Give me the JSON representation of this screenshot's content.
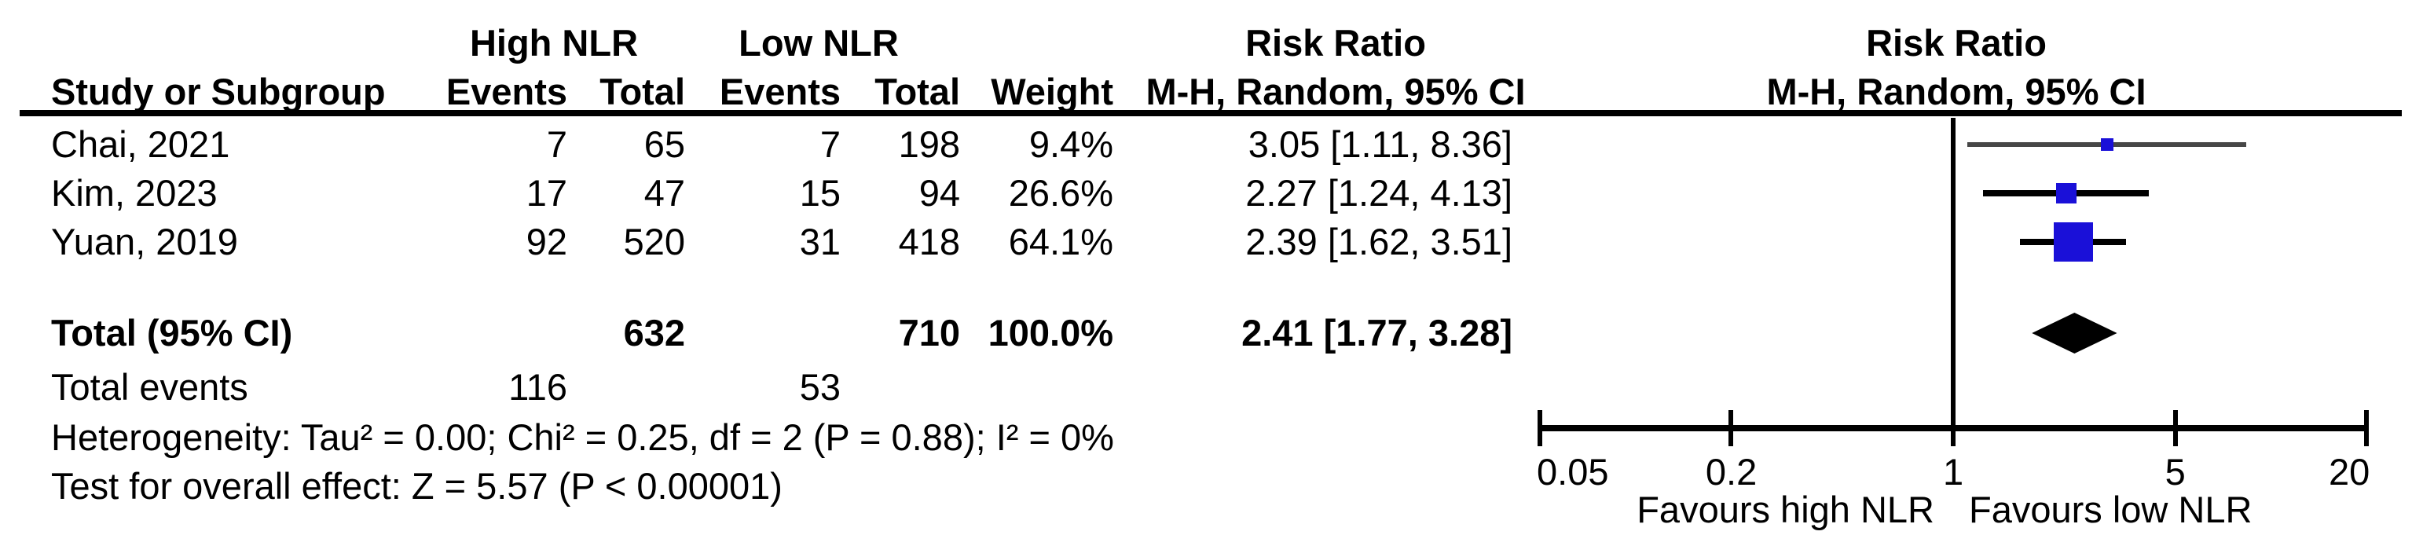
{
  "header": {
    "group_high": "High NLR",
    "group_low": "Low NLR",
    "risk_ratio": "Risk Ratio",
    "method_ci": "M-H, Random, 95% CI",
    "study_col": "Study or Subgroup",
    "events_col": "Events",
    "total_col": "Total",
    "weight_col": "Weight"
  },
  "rows": [
    {
      "study": "Chai, 2021",
      "events_high": "7",
      "total_high": "65",
      "events_low": "7",
      "total_low": "198",
      "weight": "9.4%",
      "rr_ci": "3.05 [1.11, 8.36]"
    },
    {
      "study": "Kim, 2023",
      "events_high": "17",
      "total_high": "47",
      "events_low": "15",
      "total_low": "94",
      "weight": "26.6%",
      "rr_ci": "2.27 [1.24, 4.13]"
    },
    {
      "study": "Yuan, 2019",
      "events_high": "92",
      "total_high": "520",
      "events_low": "31",
      "total_low": "418",
      "weight": "64.1%",
      "rr_ci": "2.39 [1.62, 3.51]"
    }
  ],
  "totals": {
    "label": "Total (95% CI)",
    "total_high": "632",
    "total_low": "710",
    "weight": "100.0%",
    "rr_ci": "2.41 [1.77, 3.28]",
    "events_label": "Total events",
    "events_high": "116",
    "events_low": "53"
  },
  "footer": {
    "heterogeneity": "Heterogeneity: Tau² = 0.00; Chi² = 0.25, df = 2 (P = 0.88); I² = 0%",
    "overall_effect": "Test for overall effect: Z = 5.57 (P < 0.00001)"
  },
  "plot": {
    "favours_left": "Favours high NLR",
    "favours_right": "Favours low NLR",
    "square_color": "#1a10d8",
    "diamond_color": "#000000",
    "axis_color": "#000000"
  },
  "chart_data": {
    "type": "forest",
    "effect_measure": "Risk Ratio",
    "model": "M-H, Random, 95% CI",
    "x_scale": "log",
    "x_ticks": [
      0.05,
      0.2,
      1,
      5,
      20
    ],
    "x_range": [
      0.05,
      20
    ],
    "null_value": 1,
    "studies": [
      {
        "name": "Chai, 2021",
        "rr": 3.05,
        "ci_low": 1.11,
        "ci_high": 8.36,
        "weight_pct": 9.4
      },
      {
        "name": "Kim, 2023",
        "rr": 2.27,
        "ci_low": 1.24,
        "ci_high": 4.13,
        "weight_pct": 26.6
      },
      {
        "name": "Yuan, 2019",
        "rr": 2.39,
        "ci_low": 1.62,
        "ci_high": 3.51,
        "weight_pct": 64.1
      }
    ],
    "total": {
      "name": "Total (95% CI)",
      "rr": 2.41,
      "ci_low": 1.77,
      "ci_high": 3.28,
      "weight_pct": 100.0
    }
  }
}
